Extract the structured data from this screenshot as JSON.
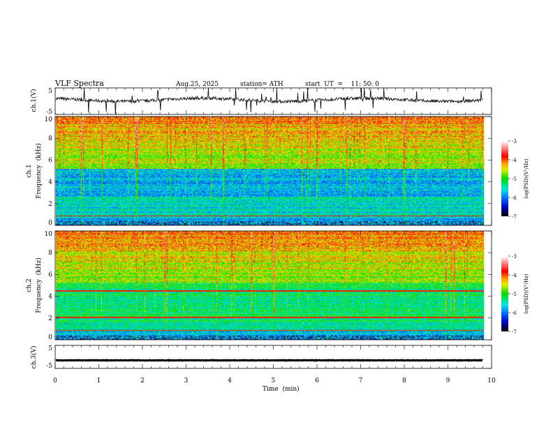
{
  "chart_data": {
    "type": "heatmap",
    "title": "VLF  Spectra",
    "date": "Aug.25, 2025",
    "station": "station= ATH",
    "start_ut": "start  UT  =    11: 50: 0",
    "xlabel": "Time  (min)",
    "xlim": [
      0,
      10
    ],
    "data_end_min": 9.8,
    "xticks": [
      "0",
      "1",
      "2",
      "3",
      "4",
      "5",
      "6",
      "7",
      "8",
      "9",
      "10"
    ],
    "panels": [
      {
        "name": "ch1-waveform",
        "ylabel": "ch.1(V)",
        "ylim": [
          -5,
          5
        ],
        "yticks": [
          "5",
          "-5"
        ],
        "baseline": 0.5
      },
      {
        "name": "ch1-spectrogram",
        "ylabel": "ch.1\nFrequency  (kHz)",
        "ylabel_top": "ch.1",
        "ylabel_bottom": "Frequency  (kHz)",
        "ylim": [
          0,
          10
        ],
        "yticks": [
          "0",
          "2",
          "4",
          "6",
          "8",
          "10"
        ]
      },
      {
        "name": "ch2-spectrogram",
        "ylabel_top": "ch.2",
        "ylabel_bottom": "Frequency  (kHz)",
        "ylim": [
          0,
          10
        ],
        "yticks": [
          "0",
          "2",
          "4",
          "6",
          "8",
          "10"
        ]
      },
      {
        "name": "ch3-waveform",
        "ylabel": "ch.3(V)",
        "ylim": [
          -5,
          5
        ],
        "yticks": [
          "5",
          "-5"
        ],
        "baseline": -1.5
      }
    ],
    "colorbar": {
      "label": "log(PSD)(V²/Hz)",
      "range": [
        -7,
        -3
      ],
      "ticks": [
        "-3",
        "-4",
        "-5",
        "-6",
        "-7"
      ]
    }
  }
}
